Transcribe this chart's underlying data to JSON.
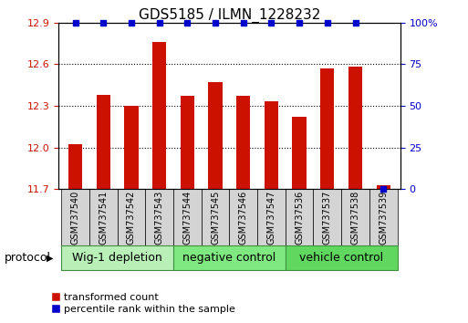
{
  "title": "GDS5185 / ILMN_1228232",
  "samples": [
    "GSM737540",
    "GSM737541",
    "GSM737542",
    "GSM737543",
    "GSM737544",
    "GSM737545",
    "GSM737546",
    "GSM737547",
    "GSM737536",
    "GSM737537",
    "GSM737538",
    "GSM737539"
  ],
  "red_values": [
    12.02,
    12.38,
    12.3,
    12.76,
    12.37,
    12.47,
    12.37,
    12.33,
    12.22,
    12.57,
    12.58,
    11.73
  ],
  "blue_values": [
    100,
    100,
    100,
    100,
    100,
    100,
    100,
    100,
    100,
    100,
    100,
    0
  ],
  "ylim_left": [
    11.7,
    12.9
  ],
  "ylim_right": [
    0,
    100
  ],
  "yticks_left": [
    11.7,
    12.0,
    12.3,
    12.6,
    12.9
  ],
  "yticks_right": [
    0,
    25,
    50,
    75,
    100
  ],
  "ytick_labels_right": [
    "0",
    "25",
    "50",
    "75",
    "100%"
  ],
  "groups": [
    {
      "label": "Wig-1 depletion",
      "start": 0,
      "end": 4,
      "color": "#b8f0b8"
    },
    {
      "label": "negative control",
      "start": 4,
      "end": 8,
      "color": "#80e880"
    },
    {
      "label": "vehicle control",
      "start": 8,
      "end": 12,
      "color": "#60d860"
    }
  ],
  "bar_color": "#cc1100",
  "dot_color": "#0000cc",
  "bar_width": 0.5,
  "protocol_label": "protocol",
  "legend_red": "transformed count",
  "legend_blue": "percentile rank within the sample",
  "title_fontsize": 11,
  "axis_label_color_left": "#cc1100",
  "axis_label_color_right": "#0000cc",
  "tick_fontsize": 8,
  "group_fontsize": 9,
  "sample_fontsize": 7,
  "legend_fontsize": 8,
  "sample_box_color": "#d4d4d4"
}
